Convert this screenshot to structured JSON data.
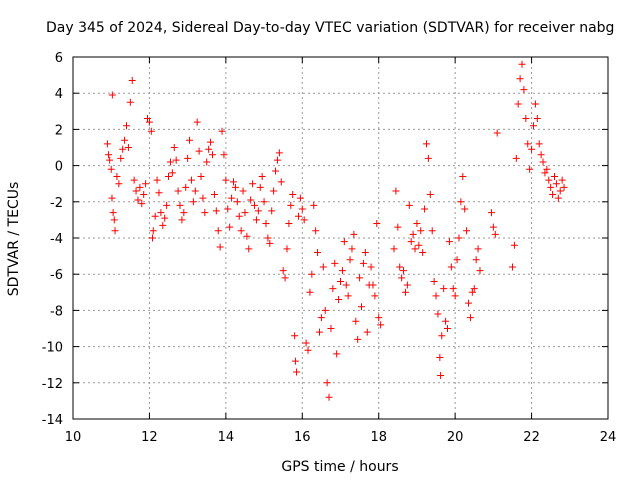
{
  "chart_data": {
    "type": "scatter",
    "title": "Day 345 of 2024, Sidereal Day-to-day VTEC variation (SDTVAR) for receiver nabg",
    "xlabel": "GPS time / hours",
    "ylabel": "SDTVAR / TECUs",
    "xlim": [
      10,
      24
    ],
    "ylim": [
      -14,
      6
    ],
    "xticks": [
      "10",
      "12",
      "14",
      "16",
      "18",
      "20",
      "22",
      "24"
    ],
    "yticks": [
      "6",
      "4",
      "2",
      "0",
      "-2",
      "-4",
      "-6",
      "-8",
      "-10",
      "-12",
      "-14"
    ],
    "grid": true,
    "marker": "plus",
    "color": "#ff0000",
    "series": [
      {
        "name": "SDTVAR",
        "points": [
          [
            10.9,
            1.2
          ],
          [
            10.93,
            0.6
          ],
          [
            10.96,
            0.3
          ],
          [
            11.0,
            -0.2
          ],
          [
            11.02,
            -1.8
          ],
          [
            11.05,
            -2.6
          ],
          [
            11.08,
            -3.0
          ],
          [
            11.1,
            -3.6
          ],
          [
            11.03,
            3.9
          ],
          [
            11.15,
            -0.6
          ],
          [
            11.2,
            -1.0
          ],
          [
            11.25,
            0.4
          ],
          [
            11.3,
            0.9
          ],
          [
            11.35,
            1.4
          ],
          [
            11.4,
            2.2
          ],
          [
            11.45,
            1.0
          ],
          [
            11.5,
            3.5
          ],
          [
            11.55,
            4.7
          ],
          [
            11.6,
            -0.8
          ],
          [
            11.65,
            -1.4
          ],
          [
            11.7,
            -1.9
          ],
          [
            11.75,
            -1.2
          ],
          [
            11.8,
            -2.1
          ],
          [
            11.85,
            -1.6
          ],
          [
            11.9,
            -1.0
          ],
          [
            11.95,
            2.6
          ],
          [
            12.0,
            2.4
          ],
          [
            12.05,
            1.9
          ],
          [
            12.08,
            -4.0
          ],
          [
            12.1,
            -3.6
          ],
          [
            12.15,
            -2.8
          ],
          [
            12.2,
            -0.8
          ],
          [
            12.25,
            -1.5
          ],
          [
            12.3,
            -2.6
          ],
          [
            12.35,
            -3.3
          ],
          [
            12.4,
            -2.9
          ],
          [
            12.45,
            -2.2
          ],
          [
            12.5,
            -0.6
          ],
          [
            12.55,
            0.2
          ],
          [
            12.6,
            -0.4
          ],
          [
            12.65,
            1.0
          ],
          [
            12.7,
            0.3
          ],
          [
            12.75,
            -1.4
          ],
          [
            12.8,
            -2.2
          ],
          [
            12.85,
            -3.0
          ],
          [
            12.9,
            -2.6
          ],
          [
            12.95,
            -1.2
          ],
          [
            13.0,
            0.4
          ],
          [
            13.05,
            1.4
          ],
          [
            13.1,
            -0.8
          ],
          [
            13.15,
            -2.0
          ],
          [
            13.2,
            -1.4
          ],
          [
            13.25,
            2.4
          ],
          [
            13.3,
            0.8
          ],
          [
            13.35,
            -0.6
          ],
          [
            13.4,
            -1.8
          ],
          [
            13.45,
            -2.6
          ],
          [
            13.5,
            0.2
          ],
          [
            13.55,
            0.9
          ],
          [
            13.6,
            1.3
          ],
          [
            13.65,
            0.6
          ],
          [
            13.7,
            -1.6
          ],
          [
            13.75,
            -2.5
          ],
          [
            13.8,
            -3.6
          ],
          [
            13.85,
            -4.5
          ],
          [
            13.9,
            1.9
          ],
          [
            13.95,
            0.6
          ],
          [
            14.0,
            -0.8
          ],
          [
            14.05,
            -2.4
          ],
          [
            14.1,
            -3.4
          ],
          [
            14.15,
            -1.8
          ],
          [
            14.2,
            -0.9
          ],
          [
            14.25,
            -1.2
          ],
          [
            14.3,
            -2.0
          ],
          [
            14.35,
            -2.8
          ],
          [
            14.4,
            -3.6
          ],
          [
            14.45,
            -1.4
          ],
          [
            14.5,
            -2.6
          ],
          [
            14.55,
            -3.9
          ],
          [
            14.6,
            -4.6
          ],
          [
            14.65,
            -1.9
          ],
          [
            14.7,
            -1.0
          ],
          [
            14.75,
            -2.2
          ],
          [
            14.8,
            -3.0
          ],
          [
            14.85,
            -2.5
          ],
          [
            14.9,
            -1.2
          ],
          [
            14.95,
            -0.6
          ],
          [
            15.0,
            -2.0
          ],
          [
            15.05,
            -3.2
          ],
          [
            15.1,
            -4.0
          ],
          [
            15.15,
            -4.3
          ],
          [
            15.2,
            -2.5
          ],
          [
            15.25,
            -1.4
          ],
          [
            15.3,
            -0.3
          ],
          [
            15.35,
            0.3
          ],
          [
            15.4,
            0.7
          ],
          [
            15.45,
            -0.9
          ],
          [
            15.5,
            -5.8
          ],
          [
            15.55,
            -6.2
          ],
          [
            15.6,
            -4.6
          ],
          [
            15.65,
            -3.2
          ],
          [
            15.7,
            -2.2
          ],
          [
            15.75,
            -1.6
          ],
          [
            15.8,
            -9.4
          ],
          [
            15.82,
            -10.8
          ],
          [
            15.85,
            -11.4
          ],
          [
            15.9,
            -2.8
          ],
          [
            15.95,
            -1.8
          ],
          [
            16.0,
            -2.4
          ],
          [
            16.05,
            -3.0
          ],
          [
            16.1,
            -9.8
          ],
          [
            16.15,
            -10.2
          ],
          [
            16.2,
            -7.0
          ],
          [
            16.25,
            -6.0
          ],
          [
            16.3,
            -2.2
          ],
          [
            16.35,
            -3.6
          ],
          [
            16.4,
            -4.8
          ],
          [
            16.45,
            -9.2
          ],
          [
            16.5,
            -8.4
          ],
          [
            16.55,
            -5.6
          ],
          [
            16.6,
            -8.0
          ],
          [
            16.65,
            -12.0
          ],
          [
            16.7,
            -12.8
          ],
          [
            16.75,
            -9.0
          ],
          [
            16.8,
            -6.8
          ],
          [
            16.85,
            -5.4
          ],
          [
            16.9,
            -10.4
          ],
          [
            16.95,
            -7.4
          ],
          [
            17.0,
            -6.4
          ],
          [
            17.05,
            -5.8
          ],
          [
            17.1,
            -4.2
          ],
          [
            17.15,
            -6.6
          ],
          [
            17.2,
            -7.2
          ],
          [
            17.25,
            -5.2
          ],
          [
            17.3,
            -4.6
          ],
          [
            17.35,
            -3.8
          ],
          [
            17.4,
            -8.6
          ],
          [
            17.45,
            -9.6
          ],
          [
            17.5,
            -6.2
          ],
          [
            17.55,
            -7.8
          ],
          [
            17.6,
            -5.4
          ],
          [
            17.65,
            -4.8
          ],
          [
            17.7,
            -9.2
          ],
          [
            17.75,
            -6.6
          ],
          [
            17.8,
            -5.6
          ],
          [
            17.85,
            -6.6
          ],
          [
            17.9,
            -7.2
          ],
          [
            17.95,
            -3.2
          ],
          [
            18.0,
            -8.4
          ],
          [
            18.05,
            -8.8
          ],
          [
            18.4,
            -4.6
          ],
          [
            18.45,
            -1.4
          ],
          [
            18.5,
            -3.4
          ],
          [
            18.55,
            -5.6
          ],
          [
            18.6,
            -6.2
          ],
          [
            18.65,
            -5.8
          ],
          [
            18.7,
            -7.0
          ],
          [
            18.75,
            -6.6
          ],
          [
            18.8,
            -2.2
          ],
          [
            18.85,
            -4.2
          ],
          [
            18.9,
            -3.8
          ],
          [
            18.95,
            -4.6
          ],
          [
            19.0,
            -3.2
          ],
          [
            19.05,
            -4.4
          ],
          [
            19.1,
            -3.6
          ],
          [
            19.15,
            -4.8
          ],
          [
            19.2,
            -2.4
          ],
          [
            19.25,
            1.2
          ],
          [
            19.3,
            0.4
          ],
          [
            19.35,
            -1.6
          ],
          [
            19.4,
            -3.6
          ],
          [
            19.45,
            -6.4
          ],
          [
            19.5,
            -7.2
          ],
          [
            19.55,
            -8.2
          ],
          [
            19.6,
            -10.6
          ],
          [
            19.62,
            -11.6
          ],
          [
            19.65,
            -9.4
          ],
          [
            19.7,
            -6.8
          ],
          [
            19.75,
            -8.6
          ],
          [
            19.8,
            -9.0
          ],
          [
            19.85,
            -4.2
          ],
          [
            19.9,
            -5.6
          ],
          [
            19.95,
            -6.8
          ],
          [
            20.0,
            -7.2
          ],
          [
            20.05,
            -5.2
          ],
          [
            20.1,
            -4.0
          ],
          [
            20.15,
            -2.0
          ],
          [
            20.2,
            -0.6
          ],
          [
            20.25,
            -2.4
          ],
          [
            20.3,
            -3.6
          ],
          [
            20.35,
            -7.6
          ],
          [
            20.4,
            -8.4
          ],
          [
            20.45,
            -7.0
          ],
          [
            20.5,
            -6.8
          ],
          [
            20.55,
            -5.2
          ],
          [
            20.6,
            -4.6
          ],
          [
            20.65,
            -5.8
          ],
          [
            20.95,
            -2.6
          ],
          [
            21.0,
            -3.4
          ],
          [
            21.05,
            -3.8
          ],
          [
            21.1,
            1.8
          ],
          [
            21.5,
            -5.6
          ],
          [
            21.55,
            -4.4
          ],
          [
            21.6,
            0.4
          ],
          [
            21.65,
            3.4
          ],
          [
            21.7,
            4.8
          ],
          [
            21.75,
            5.6
          ],
          [
            21.8,
            4.2
          ],
          [
            21.85,
            2.6
          ],
          [
            21.9,
            1.2
          ],
          [
            21.95,
            -0.2
          ],
          [
            22.0,
            0.9
          ],
          [
            22.05,
            2.2
          ],
          [
            22.1,
            3.4
          ],
          [
            22.15,
            2.6
          ],
          [
            22.2,
            1.2
          ],
          [
            22.25,
            0.6
          ],
          [
            22.3,
            0.2
          ],
          [
            22.35,
            -0.4
          ],
          [
            22.4,
            -0.2
          ],
          [
            22.45,
            -0.8
          ],
          [
            22.5,
            -1.2
          ],
          [
            22.55,
            -1.6
          ],
          [
            22.6,
            -0.6
          ],
          [
            22.65,
            -1.0
          ],
          [
            22.7,
            -1.8
          ],
          [
            22.75,
            -1.4
          ],
          [
            22.8,
            -0.8
          ],
          [
            22.85,
            -1.2
          ]
        ]
      }
    ]
  }
}
